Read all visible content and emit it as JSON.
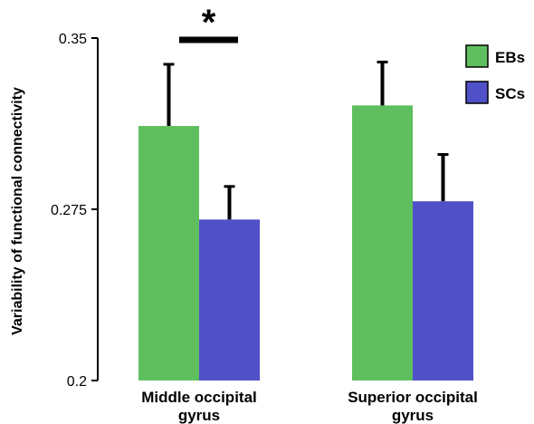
{
  "chart_data": {
    "type": "bar",
    "title": "",
    "ylabel": "Variability of functional connectivity",
    "xlabel": "",
    "ylim": [
      0.2,
      0.35
    ],
    "yticks": [
      "0.2",
      "0.275",
      "0.35"
    ],
    "categories": [
      [
        "Middle occipital",
        "gyrus"
      ],
      [
        "Superior occipital",
        "gyrus"
      ]
    ],
    "series": [
      {
        "name": "EBs",
        "color": "#5fbf5f",
        "values": [
          0.3115,
          0.3205
        ],
        "errors": [
          0.027,
          0.019
        ]
      },
      {
        "name": "SCs",
        "color": "#5050c8",
        "values": [
          0.2705,
          0.2785
        ],
        "errors": [
          0.0145,
          0.0205
        ]
      }
    ],
    "legend_position": "top-right",
    "significance": [
      {
        "category_index": 0,
        "label": "*"
      }
    ],
    "grid": false
  }
}
